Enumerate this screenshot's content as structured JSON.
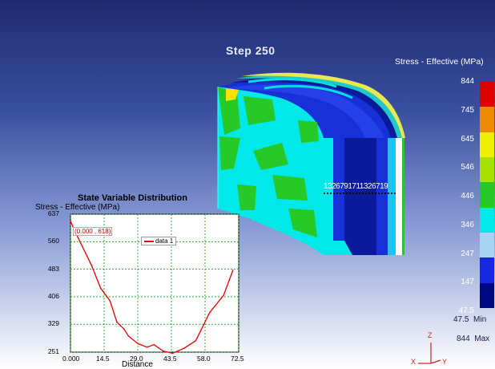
{
  "viewport": {
    "step_label": "Step  250",
    "contour_title": "Stress - Effective (MPa)",
    "legend": {
      "ticks": [
        "844",
        "745",
        "645",
        "546",
        "446",
        "346",
        "247",
        "147",
        "47.5"
      ],
      "colors": [
        "#e00000",
        "#f08a00",
        "#f0f000",
        "#a8e000",
        "#28c828",
        "#00e8e8",
        "#a8d4f0",
        "#1828e0",
        "#000a80"
      ]
    },
    "min_row": {
      "value": "47.5",
      "label": "Min"
    },
    "max_row": {
      "value": "844",
      "label": "Max"
    },
    "axes": {
      "z": "Z",
      "x": "X",
      "y": "Y"
    },
    "probe_text": "1326791711326719"
  },
  "plot": {
    "title": "State Variable Distribution",
    "ylabel": "Stress - Effective (MPa)",
    "xlabel": "Distance",
    "coord_label": "(0.000 , 618)",
    "legend_label": "data 1",
    "y_ticks": [
      "637",
      "560",
      "483",
      "406",
      "329",
      "251"
    ],
    "x_ticks": [
      "0.000",
      "14.5",
      "29.0",
      "43.5",
      "58.0",
      "72.5"
    ],
    "colors": {
      "line": "#e01010",
      "grid": "#00a000",
      "bg": "#ffffff"
    }
  },
  "chart_data": {
    "type": "line",
    "title": "State Variable Distribution",
    "xlabel": "Distance",
    "ylabel": "Stress - Effective (MPa)",
    "xlim": [
      0,
      72.5
    ],
    "ylim": [
      251,
      637
    ],
    "grid": true,
    "legend": "top-center",
    "series": [
      {
        "name": "data 1",
        "x": [
          0,
          2,
          5,
          9,
          13,
          17,
          20,
          23,
          25,
          29,
          33,
          36,
          40,
          44,
          49,
          54,
          60,
          66,
          70
        ],
        "y": [
          618,
          588,
          548,
          495,
          430,
          395,
          335,
          316,
          296,
          275,
          265,
          272,
          254,
          248,
          262,
          283,
          362,
          410,
          480
        ]
      }
    ]
  }
}
